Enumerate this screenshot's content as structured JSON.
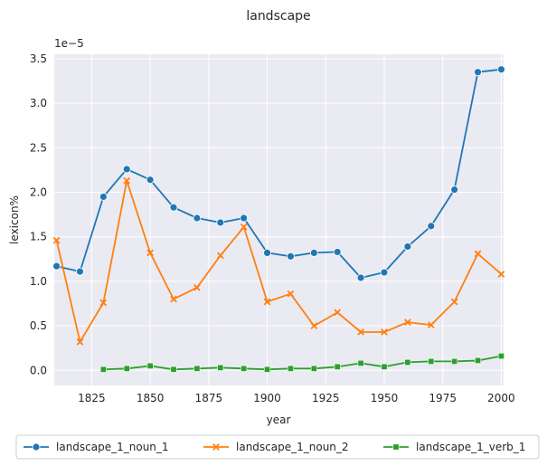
{
  "chart_data": {
    "type": "line",
    "title": "landscape",
    "xlabel": "year",
    "ylabel": "lexicon%",
    "y_offset_label": "1e−5",
    "xlim": [
      1809,
      2001
    ],
    "ylim": [
      -0.17,
      3.55
    ],
    "grid": true,
    "legend_position": "bottom",
    "xticks": [
      1825,
      1850,
      1875,
      1900,
      1925,
      1950,
      1975,
      2000
    ],
    "xtick_labels": [
      "1825",
      "1850",
      "1875",
      "1900",
      "1925",
      "1950",
      "1975",
      "2000"
    ],
    "yticks": [
      0.0,
      0.5,
      1.0,
      1.5,
      2.0,
      2.5,
      3.0,
      3.5
    ],
    "ytick_labels": [
      "0.0",
      "0.5",
      "1.0",
      "1.5",
      "2.0",
      "2.5",
      "3.0",
      "3.5"
    ],
    "series": [
      {
        "name": "landscape_1_noun_1",
        "color": "#1f77b4",
        "marker": "circle",
        "x": [
          1810,
          1820,
          1830,
          1840,
          1850,
          1860,
          1870,
          1880,
          1890,
          1900,
          1910,
          1920,
          1930,
          1940,
          1950,
          1960,
          1970,
          1980,
          1990,
          2000
        ],
        "y": [
          1.17,
          1.11,
          1.95,
          2.26,
          2.14,
          1.83,
          1.71,
          1.66,
          1.71,
          1.32,
          1.28,
          1.32,
          1.33,
          1.04,
          1.1,
          1.39,
          1.62,
          2.03,
          3.35,
          3.38
        ]
      },
      {
        "name": "landscape_1_noun_2",
        "color": "#ff7f0e",
        "marker": "x",
        "x": [
          1810,
          1820,
          1830,
          1840,
          1850,
          1860,
          1870,
          1880,
          1890,
          1900,
          1910,
          1920,
          1930,
          1940,
          1950,
          1960,
          1970,
          1980,
          1990,
          2000
        ],
        "y": [
          1.46,
          0.32,
          0.76,
          2.13,
          1.32,
          0.8,
          0.93,
          1.29,
          1.61,
          0.77,
          0.86,
          0.5,
          0.65,
          0.43,
          0.43,
          0.54,
          0.51,
          0.77,
          1.31,
          1.08
        ]
      },
      {
        "name": "landscape_1_verb_1",
        "color": "#2ca02c",
        "marker": "square",
        "x": [
          1830,
          1840,
          1850,
          1860,
          1870,
          1880,
          1890,
          1900,
          1910,
          1920,
          1930,
          1940,
          1950,
          1960,
          1970,
          1980,
          1990,
          2000
        ],
        "y": [
          0.01,
          0.02,
          0.05,
          0.01,
          0.02,
          0.03,
          0.02,
          0.01,
          0.02,
          0.02,
          0.04,
          0.08,
          0.04,
          0.09,
          0.1,
          0.1,
          0.11,
          0.16
        ]
      }
    ]
  }
}
